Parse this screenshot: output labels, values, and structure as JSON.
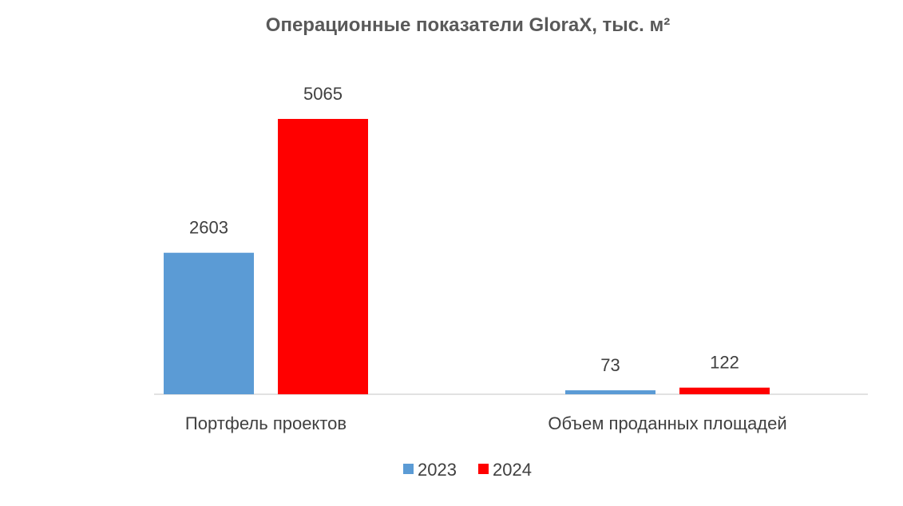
{
  "chart_data": {
    "type": "bar",
    "title": "Операционные показатели GloraX, тыс. м²",
    "categories": [
      "Портфель проектов",
      "Объем проданных площадей"
    ],
    "series": [
      {
        "name": "2023",
        "values": [
          2603,
          73
        ],
        "color": "#5B9BD5"
      },
      {
        "name": "2024",
        "values": [
          5065,
          122
        ],
        "color": "#FF0000"
      }
    ],
    "ylim": [
      0,
      5065
    ],
    "grid": false,
    "legend": "bottom"
  }
}
